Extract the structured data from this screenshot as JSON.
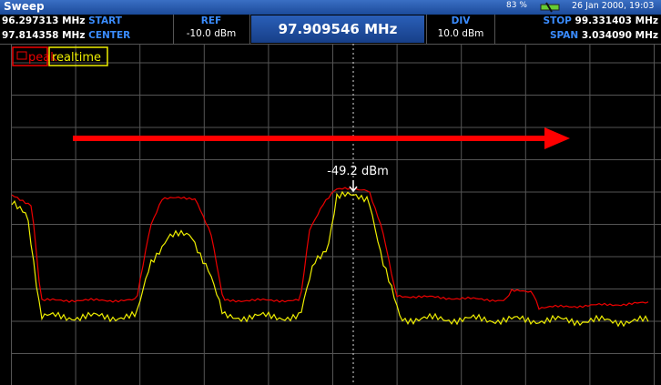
{
  "header": {
    "title": "Sweep",
    "battery": "83 %",
    "datetime": "26 Jan 2000, 19:03"
  },
  "info": {
    "start": {
      "value": "96.297313 MHz",
      "label": "START"
    },
    "center": {
      "value": "97.814358 MHz",
      "label": "CENTER"
    },
    "ref": {
      "label": "REF",
      "value": "-10.0 dBm"
    },
    "frequency": "97.909546 MHz",
    "div": {
      "label": "DIV",
      "value": "10.0 dBm"
    },
    "stop": {
      "label": "STOP",
      "value": "99.331403 MHz"
    },
    "span": {
      "label": "SPAN",
      "value": "3.034090 MHz"
    }
  },
  "legend": [
    "peak",
    "realtime"
  ],
  "marker": "-49.2 dBm"
}
